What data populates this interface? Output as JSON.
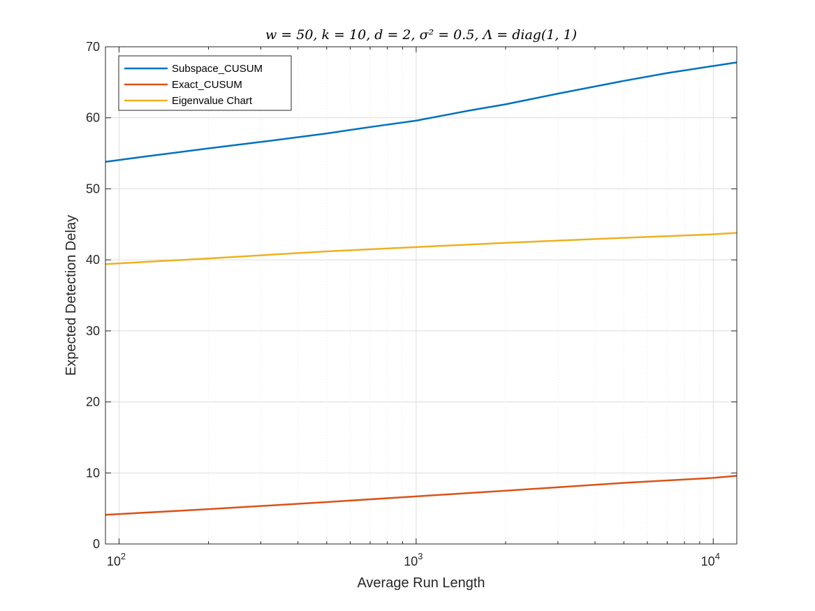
{
  "chart_data": {
    "type": "line",
    "title": "w = 50, k = 10, d = 2, σ² = 0.5, Λ = diag(1, 1)",
    "xlabel": "Average Run Length",
    "ylabel": "Expected Detection Delay",
    "xscale": "log",
    "xlim": [
      90,
      12000
    ],
    "ylim": [
      0,
      70
    ],
    "yticks": [
      0,
      10,
      20,
      30,
      40,
      50,
      60,
      70
    ],
    "xticks": [
      {
        "value": 100,
        "base": "10",
        "exp": "2"
      },
      {
        "value": 1000,
        "base": "10",
        "exp": "3"
      },
      {
        "value": 10000,
        "base": "10",
        "exp": "4"
      }
    ],
    "grid": true,
    "legend_position": "top-left",
    "series": [
      {
        "name": "Subspace_CUSUM",
        "color": "#0072BD",
        "x": [
          90,
          120,
          200,
          300,
          500,
          700,
          1000,
          1500,
          2000,
          3000,
          5000,
          7000,
          10000,
          12000
        ],
        "y": [
          53.8,
          54.5,
          55.7,
          56.6,
          57.8,
          58.7,
          59.6,
          61.0,
          61.9,
          63.4,
          65.2,
          66.3,
          67.3,
          67.8
        ]
      },
      {
        "name": "Exact_CUSUM",
        "color": "#D95319",
        "x": [
          90,
          200,
          500,
          1000,
          2000,
          5000,
          10000,
          12000
        ],
        "y": [
          4.1,
          4.9,
          5.9,
          6.7,
          7.5,
          8.6,
          9.3,
          9.6
        ]
      },
      {
        "name": "Eigenvalue Chart",
        "color": "#EDB120",
        "x": [
          90,
          200,
          500,
          1000,
          2000,
          5000,
          10000,
          12000
        ],
        "y": [
          39.4,
          40.2,
          41.2,
          41.8,
          42.4,
          43.1,
          43.6,
          43.8
        ]
      }
    ]
  }
}
